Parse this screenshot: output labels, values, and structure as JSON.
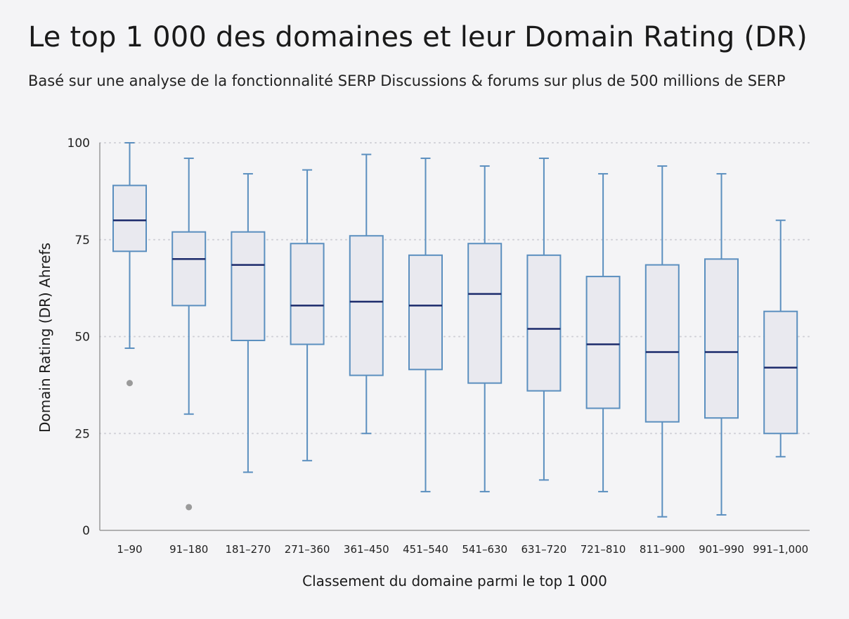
{
  "title": "Le top 1 000 des domaines et leur Domain Rating (DR)",
  "subtitle": "Basé sur une analyse de la fonctionnalité SERP Discussions & forums sur plus de 500 millions de SERP",
  "colors": {
    "box_stroke": "#5b8fbf",
    "box_fill": "#e9e9ef",
    "median": "#1b2a6b",
    "outlier": "#9a9a9a",
    "grid": "#d0d0d6",
    "axis": "#9a9a9a"
  },
  "chart_data": {
    "type": "box",
    "title": "Le top 1 000 des domaines et leur Domain Rating (DR)",
    "subtitle": "Basé sur une analyse de la fonctionnalité SERP Discussions & forums sur plus de 500 millions de SERP",
    "xlabel": "Classement du domaine parmi le top 1 000",
    "ylabel": "Domain Rating (DR) Ahrefs",
    "ylim": [
      0,
      100
    ],
    "yticks": [
      0,
      25,
      50,
      75,
      100
    ],
    "grid": "horizontal dotted",
    "categories": [
      "1–90",
      "91–180",
      "181–270",
      "271–360",
      "361–450",
      "451–540",
      "541–630",
      "631–720",
      "721–810",
      "811–900",
      "901–990",
      "991–1,000"
    ],
    "boxes": [
      {
        "min": 47,
        "q1": 72,
        "median": 80,
        "q3": 89,
        "max": 100,
        "outliers": [
          38
        ]
      },
      {
        "min": 30,
        "q1": 58,
        "median": 70,
        "q3": 77,
        "max": 96,
        "outliers": [
          6
        ]
      },
      {
        "min": 15,
        "q1": 49,
        "median": 68.5,
        "q3": 77,
        "max": 92,
        "outliers": []
      },
      {
        "min": 18,
        "q1": 48,
        "median": 58,
        "q3": 74,
        "max": 93,
        "outliers": []
      },
      {
        "min": 25,
        "q1": 40,
        "median": 59,
        "q3": 76,
        "max": 97,
        "outliers": []
      },
      {
        "min": 10,
        "q1": 41.5,
        "median": 58,
        "q3": 71,
        "max": 96,
        "outliers": []
      },
      {
        "min": 10,
        "q1": 38,
        "median": 61,
        "q3": 74,
        "max": 94,
        "outliers": []
      },
      {
        "min": 13,
        "q1": 36,
        "median": 52,
        "q3": 71,
        "max": 96,
        "outliers": []
      },
      {
        "min": 10,
        "q1": 31.5,
        "median": 48,
        "q3": 65.5,
        "max": 92,
        "outliers": []
      },
      {
        "min": 3.5,
        "q1": 28,
        "median": 46,
        "q3": 68.5,
        "max": 94,
        "outliers": []
      },
      {
        "min": 4,
        "q1": 29,
        "median": 46,
        "q3": 70,
        "max": 92,
        "outliers": []
      },
      {
        "min": 19,
        "q1": 25,
        "median": 42,
        "q3": 56.5,
        "max": 80,
        "outliers": []
      }
    ]
  }
}
